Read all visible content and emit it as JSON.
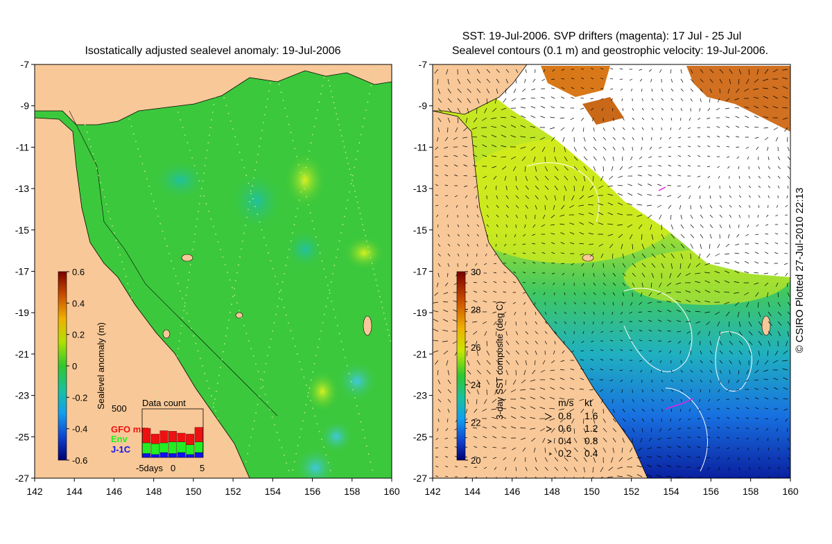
{
  "left_panel": {
    "title": "Isostatically adjusted sealevel anomaly: 19-Jul-2006",
    "colorbar": {
      "label": "Sealevel anomaly (m)",
      "ticks": [
        "0.6",
        "0.4",
        "0.2",
        "0",
        "-0.2",
        "-0.4",
        "-0.6"
      ]
    },
    "data_count": {
      "title": "Data count",
      "ymax_label": "500",
      "legend": [
        {
          "label": "GFO mm",
          "color": "#ee1111"
        },
        {
          "label": "Env",
          "color": "#22ee22"
        },
        {
          "label": "J-1C",
          "color": "#1111ee"
        }
      ],
      "x_labels": [
        "-5days",
        "0",
        "5"
      ],
      "bars": [
        {
          "gfo": 0.3,
          "env": 0.22,
          "j1c": 0.08
        },
        {
          "gfo": 0.2,
          "env": 0.22,
          "j1c": 0.06
        },
        {
          "gfo": 0.25,
          "env": 0.2,
          "j1c": 0.1
        },
        {
          "gfo": 0.22,
          "env": 0.24,
          "j1c": 0.08
        },
        {
          "gfo": 0.18,
          "env": 0.22,
          "j1c": 0.1
        },
        {
          "gfo": 0.22,
          "env": 0.2,
          "j1c": 0.06
        },
        {
          "gfo": 0.3,
          "env": 0.22,
          "j1c": 0.1
        }
      ]
    },
    "y_ticks": [
      "-7",
      "-9",
      "-11",
      "-13",
      "-15",
      "-17",
      "-19",
      "-21",
      "-23",
      "-25",
      "-27"
    ],
    "x_ticks": [
      "142",
      "144",
      "146",
      "148",
      "150",
      "152",
      "154",
      "156",
      "158",
      "160"
    ]
  },
  "right_panel": {
    "title_line1": "SST: 19-Jul-2006. SVP drifters (magenta): 17 Jul - 25 Jul",
    "title_line2": "Sealevel contours (0.1 m) and geostrophic velocity: 19-Jul-2006.",
    "colorbar": {
      "label": "3-day SST composite (deg C)",
      "ticks": [
        "30",
        "28",
        "26",
        "24",
        "22",
        "20"
      ]
    },
    "velocity_legend": {
      "header_ms": "m/s",
      "header_kt": "kt",
      "rows": [
        {
          "ms": "0.8",
          "kt": "1.6"
        },
        {
          "ms": "0.6",
          "kt": "1.2"
        },
        {
          "ms": "0.4",
          "kt": "0.8"
        },
        {
          "ms": "0.2",
          "kt": "0.4"
        }
      ]
    },
    "y_ticks": [
      "-7",
      "-9",
      "-11",
      "-13",
      "-15",
      "-17",
      "-19",
      "-21",
      "-23",
      "-25",
      "-27"
    ],
    "x_ticks": [
      "142",
      "144",
      "146",
      "148",
      "150",
      "152",
      "154",
      "156",
      "158",
      "160"
    ]
  },
  "credit": "© CSIRO Plotted 27-Jul-2010 22:13",
  "colors": {
    "land": "#f8c898",
    "sea_green": "#3cc83c",
    "white_cloud": "#ffffff"
  }
}
